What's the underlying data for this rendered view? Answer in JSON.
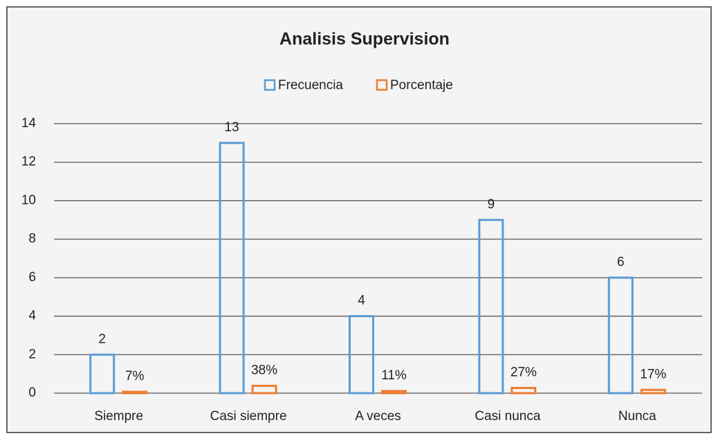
{
  "chart_data": {
    "type": "bar",
    "title": "Analisis Supervision",
    "categories": [
      "Siempre",
      "Casi siempre",
      "A veces",
      "Casi nunca",
      "Nunca"
    ],
    "series": [
      {
        "name": "Frecuencia",
        "color": "#5b9bd5",
        "values": [
          2,
          13,
          4,
          9,
          6
        ]
      },
      {
        "name": "Porcentaje",
        "color": "#ed7d31",
        "values": [
          0.07,
          0.38,
          0.11,
          0.27,
          0.17
        ],
        "value_labels": [
          "7%",
          "38%",
          "11%",
          "27%",
          "17%"
        ]
      }
    ],
    "ylim": [
      0,
      14
    ],
    "yticks": [
      0,
      2,
      4,
      6,
      8,
      10,
      12,
      14
    ],
    "grid": true,
    "legend": "top"
  }
}
